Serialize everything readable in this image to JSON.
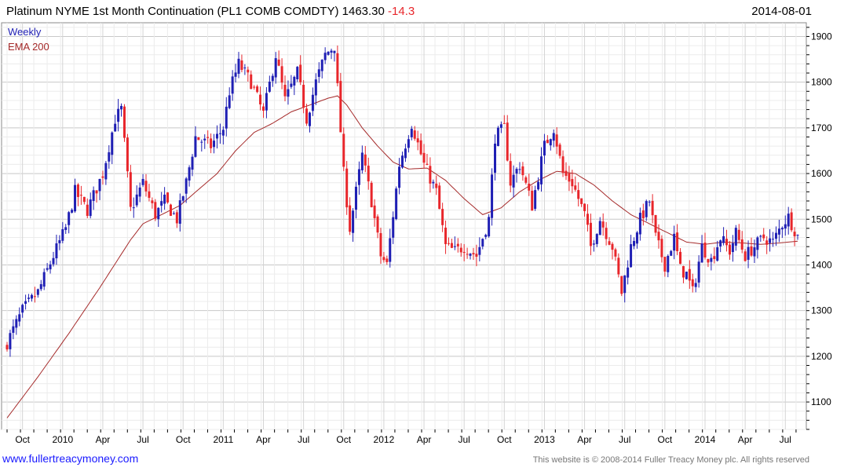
{
  "header": {
    "title": "Platinum NYME 1st Month Continuation (PL1 COMB COMDTY) 1463.30",
    "change": "-14.3",
    "date": "2014-08-01"
  },
  "footer": {
    "link": "www.fullertreacymoney.com",
    "copyright": "This website is © 2008-2014 Fuller Treacy Money plc. All rights reserved"
  },
  "colors": {
    "up": "#1f1fb4",
    "down": "#e8262b",
    "ema": "#a52a2a",
    "grid": "#d9d9d9"
  },
  "chart_data": {
    "type": "candlestick",
    "title": "Platinum NYME 1st Month Continuation (PL1 COMB COMDTY) 1463.30 -14.3",
    "interval": "Weekly",
    "legend": [
      "Weekly",
      "EMA 200"
    ],
    "legend_position": "top-left",
    "ylim": [
      1040,
      1930
    ],
    "y_ticks": [
      1100,
      1200,
      1300,
      1400,
      1500,
      1600,
      1700,
      1800,
      1900
    ],
    "x_ticks": [
      {
        "label": "Oct",
        "week": 5
      },
      {
        "label": "2010",
        "week": 18
      },
      {
        "label": "Apr",
        "week": 31
      },
      {
        "label": "Jul",
        "week": 44
      },
      {
        "label": "Oct",
        "week": 57
      },
      {
        "label": "2011",
        "week": 70
      },
      {
        "label": "Apr",
        "week": 83
      },
      {
        "label": "Jul",
        "week": 96
      },
      {
        "label": "Oct",
        "week": 109
      },
      {
        "label": "2012",
        "week": 122
      },
      {
        "label": "Apr",
        "week": 135
      },
      {
        "label": "Jul",
        "week": 148
      },
      {
        "label": "Oct",
        "week": 161
      },
      {
        "label": "2013",
        "week": 174
      },
      {
        "label": "Apr",
        "week": 187
      },
      {
        "label": "Jul",
        "week": 200
      },
      {
        "label": "Oct",
        "week": 213
      },
      {
        "label": "2014",
        "week": 226
      },
      {
        "label": "Apr",
        "week": 239
      },
      {
        "label": "Jul",
        "week": 252
      }
    ],
    "weeks_total": 257,
    "close_anchors": [
      [
        0,
        1230
      ],
      [
        5,
        1300
      ],
      [
        10,
        1340
      ],
      [
        15,
        1420
      ],
      [
        19,
        1480
      ],
      [
        22,
        1560
      ],
      [
        26,
        1520
      ],
      [
        31,
        1600
      ],
      [
        35,
        1720
      ],
      [
        37,
        1740
      ],
      [
        40,
        1520
      ],
      [
        44,
        1580
      ],
      [
        48,
        1510
      ],
      [
        51,
        1540
      ],
      [
        55,
        1500
      ],
      [
        58,
        1580
      ],
      [
        61,
        1680
      ],
      [
        66,
        1660
      ],
      [
        70,
        1700
      ],
      [
        72,
        1780
      ],
      [
        75,
        1840
      ],
      [
        79,
        1800
      ],
      [
        83,
        1730
      ],
      [
        87,
        1860
      ],
      [
        90,
        1760
      ],
      [
        94,
        1820
      ],
      [
        97,
        1720
      ],
      [
        100,
        1800
      ],
      [
        103,
        1860
      ],
      [
        106,
        1880
      ],
      [
        109,
        1600
      ],
      [
        111,
        1480
      ],
      [
        115,
        1640
      ],
      [
        118,
        1540
      ],
      [
        121,
        1420
      ],
      [
        123,
        1400
      ],
      [
        127,
        1620
      ],
      [
        131,
        1710
      ],
      [
        135,
        1620
      ],
      [
        139,
        1560
      ],
      [
        142,
        1440
      ],
      [
        145,
        1430
      ],
      [
        148,
        1440
      ],
      [
        152,
        1420
      ],
      [
        156,
        1500
      ],
      [
        158,
        1680
      ],
      [
        161,
        1700
      ],
      [
        163,
        1580
      ],
      [
        166,
        1620
      ],
      [
        170,
        1530
      ],
      [
        174,
        1660
      ],
      [
        177,
        1700
      ],
      [
        180,
        1600
      ],
      [
        183,
        1580
      ],
      [
        187,
        1510
      ],
      [
        189,
        1440
      ],
      [
        192,
        1500
      ],
      [
        196,
        1440
      ],
      [
        199,
        1340
      ],
      [
        202,
        1440
      ],
      [
        205,
        1500
      ],
      [
        208,
        1540
      ],
      [
        210,
        1460
      ],
      [
        213,
        1400
      ],
      [
        216,
        1460
      ],
      [
        218,
        1390
      ],
      [
        220,
        1380
      ],
      [
        222,
        1340
      ],
      [
        225,
        1440
      ],
      [
        228,
        1410
      ],
      [
        231,
        1460
      ],
      [
        234,
        1430
      ],
      [
        236,
        1470
      ],
      [
        239,
        1420
      ],
      [
        242,
        1440
      ],
      [
        245,
        1460
      ],
      [
        248,
        1450
      ],
      [
        251,
        1490
      ],
      [
        253,
        1505
      ],
      [
        256,
        1463
      ]
    ],
    "ema200_anchors": [
      [
        0,
        1065
      ],
      [
        10,
        1155
      ],
      [
        20,
        1250
      ],
      [
        30,
        1350
      ],
      [
        40,
        1455
      ],
      [
        44,
        1490
      ],
      [
        50,
        1510
      ],
      [
        56,
        1530
      ],
      [
        62,
        1565
      ],
      [
        68,
        1600
      ],
      [
        74,
        1650
      ],
      [
        80,
        1690
      ],
      [
        86,
        1710
      ],
      [
        92,
        1735
      ],
      [
        98,
        1750
      ],
      [
        104,
        1765
      ],
      [
        107,
        1770
      ],
      [
        110,
        1750
      ],
      [
        115,
        1700
      ],
      [
        120,
        1660
      ],
      [
        125,
        1625
      ],
      [
        130,
        1610
      ],
      [
        136,
        1612
      ],
      [
        142,
        1585
      ],
      [
        148,
        1545
      ],
      [
        154,
        1510
      ],
      [
        160,
        1525
      ],
      [
        166,
        1560
      ],
      [
        172,
        1585
      ],
      [
        178,
        1605
      ],
      [
        184,
        1600
      ],
      [
        190,
        1575
      ],
      [
        196,
        1540
      ],
      [
        202,
        1510
      ],
      [
        208,
        1490
      ],
      [
        214,
        1470
      ],
      [
        220,
        1450
      ],
      [
        226,
        1445
      ],
      [
        232,
        1450
      ],
      [
        238,
        1448
      ],
      [
        244,
        1445
      ],
      [
        250,
        1448
      ],
      [
        256,
        1452
      ]
    ],
    "last_close": 1463.3,
    "change": -14.3
  }
}
